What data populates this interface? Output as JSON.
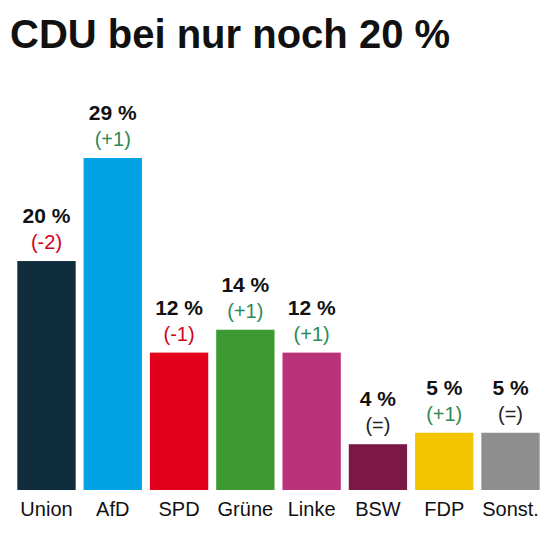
{
  "chart_data": {
    "type": "bar",
    "title": "CDU bei nur noch 20 %",
    "categories": [
      "Union",
      "AfD",
      "SPD",
      "Grüne",
      "Linke",
      "BSW",
      "FDP",
      "Sonst."
    ],
    "values": [
      20,
      29,
      12,
      14,
      12,
      4,
      5,
      5
    ],
    "value_labels": [
      "20 %",
      "29 %",
      "12 %",
      "14 %",
      "12 %",
      "4 %",
      "5 %",
      "5 %"
    ],
    "changes": [
      -2,
      1,
      -1,
      1,
      1,
      0,
      1,
      0
    ],
    "change_labels": [
      "(-2)",
      "(+1)",
      "(-1)",
      "(+1)",
      "(+1)",
      "(=)",
      "(+1)",
      "(=)"
    ],
    "colors": [
      "#0f2d3d",
      "#00a2e3",
      "#e2001a",
      "#3d9a32",
      "#b9327a",
      "#7c1846",
      "#f2c500",
      "#8e8e8e"
    ],
    "ylim": [
      0,
      29
    ],
    "data_labels": true,
    "tick_labels": "x",
    "grid": false
  }
}
